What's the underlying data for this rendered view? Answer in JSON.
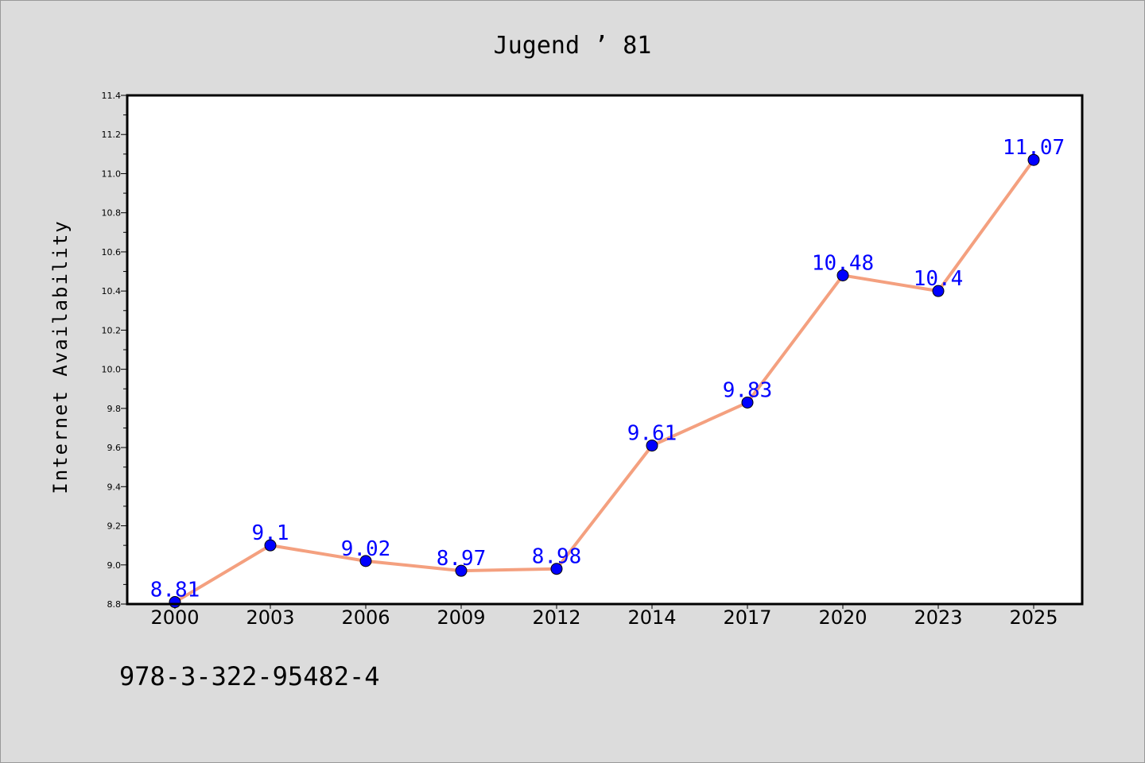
{
  "chart_data": {
    "type": "line",
    "title": "Jugend ’ 81",
    "xlabel": "",
    "ylabel": "Internet Availability",
    "categories": [
      "2000",
      "2003",
      "2006",
      "2009",
      "2012",
      "2014",
      "2017",
      "2020",
      "2023",
      "2025"
    ],
    "series": [
      {
        "values": [
          8.81,
          9.1,
          9.02,
          8.97,
          8.98,
          9.61,
          9.83,
          10.48,
          10.4,
          11.07
        ],
        "data_labels": [
          "8.81",
          "9.1",
          "9.02",
          "8.97",
          "8.98",
          "9.61",
          "9.83",
          "10.48",
          "10.4",
          "11.07"
        ]
      }
    ],
    "ylim": [
      8.8,
      11.4
    ],
    "yticks": [
      "8.8",
      "9.0",
      "9.2",
      "9.4",
      "9.6",
      "9.8",
      "10.0",
      "10.2",
      "10.4",
      "10.6",
      "10.8",
      "11.0",
      "11.2",
      "11.4"
    ],
    "grid": false,
    "legend": "none",
    "colors": {
      "background": "#dcdcdc",
      "plot_background": "#ffffff",
      "line": "#f4a07f",
      "marker": "#0000ff",
      "data_label": "#0000ff"
    }
  },
  "footer": {
    "isbn": "978-3-322-95482-4"
  }
}
